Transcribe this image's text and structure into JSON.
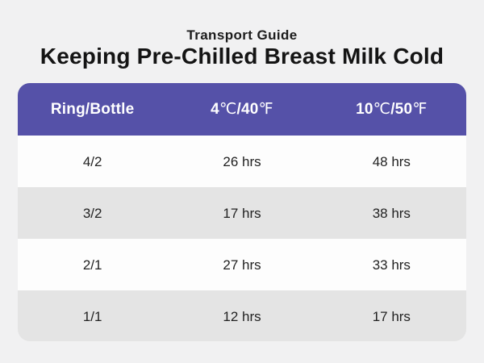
{
  "colors": {
    "background": "#f1f1f2",
    "accent": "#5551a8",
    "row_light": "#fdfdfd",
    "row_dark": "#e4e4e4",
    "header_text": "#ffffff",
    "body_text": "#1a1a1a"
  },
  "header": {
    "subtitle": "Transport Guide",
    "title": "Keeping Pre-Chilled Breast Milk Cold"
  },
  "table_header": {
    "col1": "Ring/Bottle",
    "col2": {
      "n1": "4",
      "u1": "℃",
      "n2": "/40",
      "u2": "℉"
    },
    "col3": {
      "n1": "10",
      "u1": "℃",
      "n2": "/50",
      "u2": "℉"
    }
  },
  "chart_data": {
    "type": "table",
    "title": "Keeping Pre-Chilled Breast Milk Cold",
    "subtitle": "Transport Guide",
    "columns": [
      "Ring/Bottle",
      "4℃/40℉",
      "10℃/50℉"
    ],
    "rows": [
      [
        "4/2",
        "26 hrs",
        "48 hrs"
      ],
      [
        "3/2",
        "17 hrs",
        "38 hrs"
      ],
      [
        "2/1",
        "27 hrs",
        "33 hrs"
      ],
      [
        "1/1",
        "12 hrs",
        "17 hrs"
      ]
    ],
    "layout_hints": {
      "header_background": "#5551a8",
      "alternating_rows": true,
      "grid": false
    }
  }
}
